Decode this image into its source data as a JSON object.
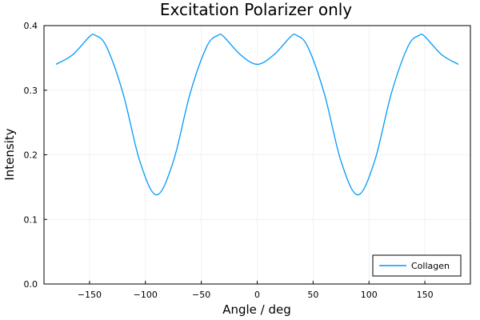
{
  "chart_data": {
    "type": "line",
    "title": "Excitation Polarizer only",
    "xlabel": "Angle / deg",
    "ylabel": "Intensity",
    "xlim": [
      -180,
      180
    ],
    "ylim": [
      0,
      0.4
    ],
    "xticks": [
      -150,
      -100,
      -50,
      0,
      50,
      100,
      150
    ],
    "xtick_labels": [
      "−150",
      "−100",
      "−50",
      "0",
      "50",
      "100",
      "150"
    ],
    "yticks": [
      0,
      0.1,
      0.2,
      0.3,
      0.4
    ],
    "ytick_labels": [
      "0.0",
      "0.1",
      "0.2",
      "0.3",
      "0.4"
    ],
    "grid": true,
    "legend_position": "bottom-right",
    "series": [
      {
        "name": "Collagen",
        "color": "#009AFA",
        "x": [
          -180,
          -165,
          -150,
          -145,
          -135,
          -120,
          -105,
          -90,
          -75,
          -60,
          -45,
          -35,
          -30,
          -15,
          0,
          15,
          30,
          35,
          45,
          60,
          75,
          90,
          105,
          120,
          135,
          145,
          150,
          165,
          180
        ],
        "y": [
          0.34,
          0.355,
          0.383,
          0.385,
          0.368,
          0.295,
          0.19,
          0.138,
          0.19,
          0.295,
          0.368,
          0.385,
          0.383,
          0.355,
          0.34,
          0.355,
          0.383,
          0.385,
          0.368,
          0.295,
          0.19,
          0.138,
          0.19,
          0.295,
          0.368,
          0.385,
          0.383,
          0.355,
          0.34
        ]
      }
    ]
  }
}
